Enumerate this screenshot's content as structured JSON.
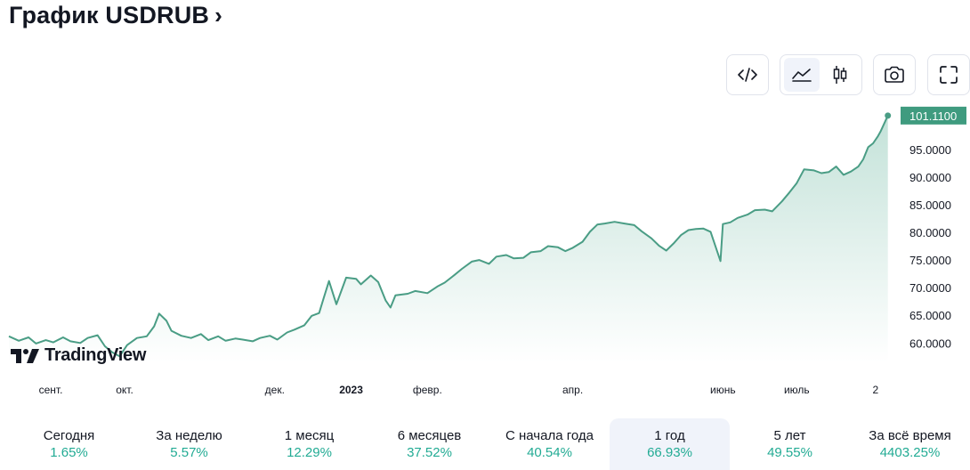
{
  "header": {
    "title": "График USDRUB",
    "chevron": "›"
  },
  "toolbar": {
    "embed": {
      "icon": "code-icon"
    },
    "chart_type": [
      {
        "icon": "area-chart-icon",
        "active": true
      },
      {
        "icon": "candles-icon",
        "active": false
      }
    ],
    "snapshot": {
      "icon": "camera-icon"
    },
    "fullscreen": {
      "icon": "fullscreen-icon"
    }
  },
  "logo": {
    "text": "TradingView",
    "icon": "tradingview-logo-icon"
  },
  "colors": {
    "line": "#4a9d85",
    "fill_top": "#b9ddd2",
    "last_badge": "#3f9b7f",
    "positive": "#22ab94"
  },
  "periods": [
    {
      "name": "Сегодня",
      "value": "1.65%",
      "active": false
    },
    {
      "name": "За неделю",
      "value": "5.57%",
      "active": false
    },
    {
      "name": "1 месяц",
      "value": "12.29%",
      "active": false
    },
    {
      "name": "6 месяцев",
      "value": "37.52%",
      "active": false
    },
    {
      "name": "С начала года",
      "value": "40.54%",
      "active": false
    },
    {
      "name": "1 год",
      "value": "66.93%",
      "active": true
    },
    {
      "name": "5 лет",
      "value": "49.55%",
      "active": false
    },
    {
      "name": "За всё время",
      "value": "4403.25%",
      "active": false
    }
  ],
  "chart_data": {
    "type": "area",
    "title": "",
    "series": [
      {
        "name": "USDRUB",
        "points": [
          [
            "2022-08-15",
            61.2
          ],
          [
            "2022-08-19",
            60.4
          ],
          [
            "2022-08-23",
            61.0
          ],
          [
            "2022-08-26",
            59.9
          ],
          [
            "2022-08-30",
            60.5
          ],
          [
            "2022-09-02",
            60.1
          ],
          [
            "2022-09-06",
            61.0
          ],
          [
            "2022-09-09",
            60.3
          ],
          [
            "2022-09-13",
            60.0
          ],
          [
            "2022-09-16",
            60.9
          ],
          [
            "2022-09-20",
            61.4
          ],
          [
            "2022-09-23",
            59.4
          ],
          [
            "2022-09-26",
            58.3
          ],
          [
            "2022-09-29",
            57.6
          ],
          [
            "2022-10-02",
            59.6
          ],
          [
            "2022-10-06",
            60.9
          ],
          [
            "2022-10-10",
            61.2
          ],
          [
            "2022-10-13",
            63.0
          ],
          [
            "2022-10-15",
            65.3
          ],
          [
            "2022-10-18",
            64.0
          ],
          [
            "2022-10-20",
            62.2
          ],
          [
            "2022-10-24",
            61.3
          ],
          [
            "2022-10-28",
            60.9
          ],
          [
            "2022-11-01",
            61.6
          ],
          [
            "2022-11-04",
            60.5
          ],
          [
            "2022-11-08",
            61.2
          ],
          [
            "2022-11-11",
            60.4
          ],
          [
            "2022-11-15",
            60.8
          ],
          [
            "2022-11-18",
            60.6
          ],
          [
            "2022-11-22",
            60.3
          ],
          [
            "2022-11-25",
            60.9
          ],
          [
            "2022-11-29",
            61.3
          ],
          [
            "2022-12-02",
            60.6
          ],
          [
            "2022-12-06",
            61.9
          ],
          [
            "2022-12-09",
            62.4
          ],
          [
            "2022-12-13",
            63.2
          ],
          [
            "2022-12-16",
            64.9
          ],
          [
            "2022-12-19",
            65.4
          ],
          [
            "2022-12-21",
            68.3
          ],
          [
            "2022-12-23",
            71.2
          ],
          [
            "2022-12-26",
            67.0
          ],
          [
            "2022-12-28",
            69.4
          ],
          [
            "2022-12-30",
            71.8
          ],
          [
            "2023-01-03",
            71.6
          ],
          [
            "2023-01-05",
            70.6
          ],
          [
            "2023-01-09",
            72.2
          ],
          [
            "2023-01-12",
            71.0
          ],
          [
            "2023-01-15",
            67.7
          ],
          [
            "2023-01-17",
            66.4
          ],
          [
            "2023-01-19",
            68.6
          ],
          [
            "2023-01-24",
            68.9
          ],
          [
            "2023-01-27",
            69.4
          ],
          [
            "2023-02-01",
            69.0
          ],
          [
            "2023-02-05",
            70.2
          ],
          [
            "2023-02-08",
            70.9
          ],
          [
            "2023-02-12",
            72.3
          ],
          [
            "2023-02-15",
            73.4
          ],
          [
            "2023-02-19",
            74.7
          ],
          [
            "2023-02-22",
            75.0
          ],
          [
            "2023-02-26",
            74.3
          ],
          [
            "2023-03-01",
            75.6
          ],
          [
            "2023-03-05",
            75.9
          ],
          [
            "2023-03-08",
            75.3
          ],
          [
            "2023-03-12",
            75.4
          ],
          [
            "2023-03-15",
            76.4
          ],
          [
            "2023-03-19",
            76.6
          ],
          [
            "2023-03-22",
            77.5
          ],
          [
            "2023-03-26",
            77.3
          ],
          [
            "2023-03-29",
            76.6
          ],
          [
            "2023-04-01",
            77.2
          ],
          [
            "2023-04-05",
            78.3
          ],
          [
            "2023-04-08",
            80.1
          ],
          [
            "2023-04-11",
            81.4
          ],
          [
            "2023-04-14",
            81.6
          ],
          [
            "2023-04-18",
            81.9
          ],
          [
            "2023-04-22",
            81.6
          ],
          [
            "2023-04-26",
            81.3
          ],
          [
            "2023-04-29",
            80.2
          ],
          [
            "2023-05-03",
            78.9
          ],
          [
            "2023-05-06",
            77.6
          ],
          [
            "2023-05-09",
            76.7
          ],
          [
            "2023-05-12",
            78.0
          ],
          [
            "2023-05-15",
            79.5
          ],
          [
            "2023-05-18",
            80.4
          ],
          [
            "2023-05-21",
            80.6
          ],
          [
            "2023-05-24",
            80.7
          ],
          [
            "2023-05-27",
            80.1
          ],
          [
            "2023-05-31",
            74.8
          ],
          [
            "2023-06-01",
            81.5
          ],
          [
            "2023-06-04",
            81.8
          ],
          [
            "2023-06-07",
            82.6
          ],
          [
            "2023-06-11",
            83.2
          ],
          [
            "2023-06-14",
            84.0
          ],
          [
            "2023-06-18",
            84.1
          ],
          [
            "2023-06-21",
            83.8
          ],
          [
            "2023-06-25",
            85.6
          ],
          [
            "2023-06-28",
            87.2
          ],
          [
            "2023-07-01",
            88.9
          ],
          [
            "2023-07-04",
            91.4
          ],
          [
            "2023-07-08",
            91.2
          ],
          [
            "2023-07-11",
            90.7
          ],
          [
            "2023-07-14",
            90.9
          ],
          [
            "2023-07-17",
            91.9
          ],
          [
            "2023-07-20",
            90.4
          ],
          [
            "2023-07-23",
            91.0
          ],
          [
            "2023-07-26",
            91.9
          ],
          [
            "2023-07-28",
            93.2
          ],
          [
            "2023-07-30",
            95.4
          ],
          [
            "2023-08-01",
            96.1
          ],
          [
            "2023-08-03",
            97.4
          ],
          [
            "2023-08-04",
            98.2
          ],
          [
            "2023-08-07",
            101.11
          ]
        ]
      }
    ],
    "x_ticks": [
      {
        "label": "сент.",
        "date": "2022-09-01",
        "bold": false
      },
      {
        "label": "окт.",
        "date": "2022-10-01",
        "bold": false
      },
      {
        "label": "дек.",
        "date": "2022-12-01",
        "bold": false
      },
      {
        "label": "2023",
        "date": "2023-01-01",
        "bold": true
      },
      {
        "label": "февр.",
        "date": "2023-02-01",
        "bold": false
      },
      {
        "label": "апр.",
        "date": "2023-04-01",
        "bold": false
      },
      {
        "label": "июнь",
        "date": "2023-06-01",
        "bold": false
      },
      {
        "label": "июль",
        "date": "2023-07-01",
        "bold": false
      },
      {
        "label": "2",
        "date": "2023-08-02",
        "bold": false
      }
    ],
    "y_ticks": [
      "95.0000",
      "90.0000",
      "85.0000",
      "80.0000",
      "75.0000",
      "70.0000",
      "65.0000",
      "60.0000"
    ],
    "last_value_label": "101.1100",
    "xlim": [
      "2022-08-15",
      "2023-08-10"
    ],
    "ylim": [
      56.5,
      103.5
    ],
    "grid": false,
    "legend": "none"
  }
}
